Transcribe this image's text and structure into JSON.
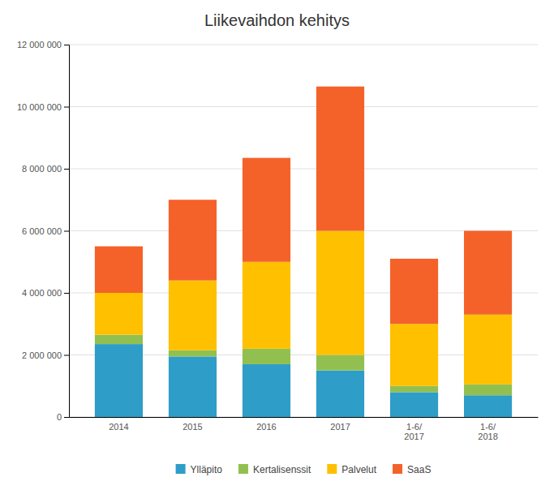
{
  "chart_data": {
    "type": "bar",
    "stacked": true,
    "title": "Liikevaihdon kehitys",
    "categories": [
      "2014",
      "2015",
      "2016",
      "2017",
      "1-6/\n2017",
      "1-6/\n2018"
    ],
    "series": [
      {
        "name": "Ylläpito",
        "color": "#2E9DC8",
        "values": [
          2350000,
          1950000,
          1700000,
          1500000,
          800000,
          700000
        ]
      },
      {
        "name": "Kertalisenssit",
        "color": "#92C050",
        "values": [
          300000,
          200000,
          500000,
          500000,
          200000,
          350000
        ]
      },
      {
        "name": "Palvelut",
        "color": "#FFC000",
        "values": [
          1350000,
          2250000,
          2800000,
          4000000,
          2000000,
          2250000
        ]
      },
      {
        "name": "SaaS",
        "color": "#F4622A",
        "values": [
          1500000,
          2600000,
          3350000,
          4650000,
          2100000,
          2700000
        ]
      }
    ],
    "ylim": [
      0,
      12000000
    ],
    "yticks": [
      0,
      {
        "value": 2000000,
        "label": "2 000 000"
      },
      {
        "value": 4000000,
        "label": "4 000 000"
      },
      {
        "value": 6000000,
        "label": "6 000 000"
      },
      {
        "value": 8000000,
        "label": "8 000 000"
      },
      {
        "value": 10000000,
        "label": "10 000 000"
      },
      {
        "value": 12000000,
        "label": "12 000 000"
      }
    ],
    "grid": true,
    "legend": "bottom"
  }
}
